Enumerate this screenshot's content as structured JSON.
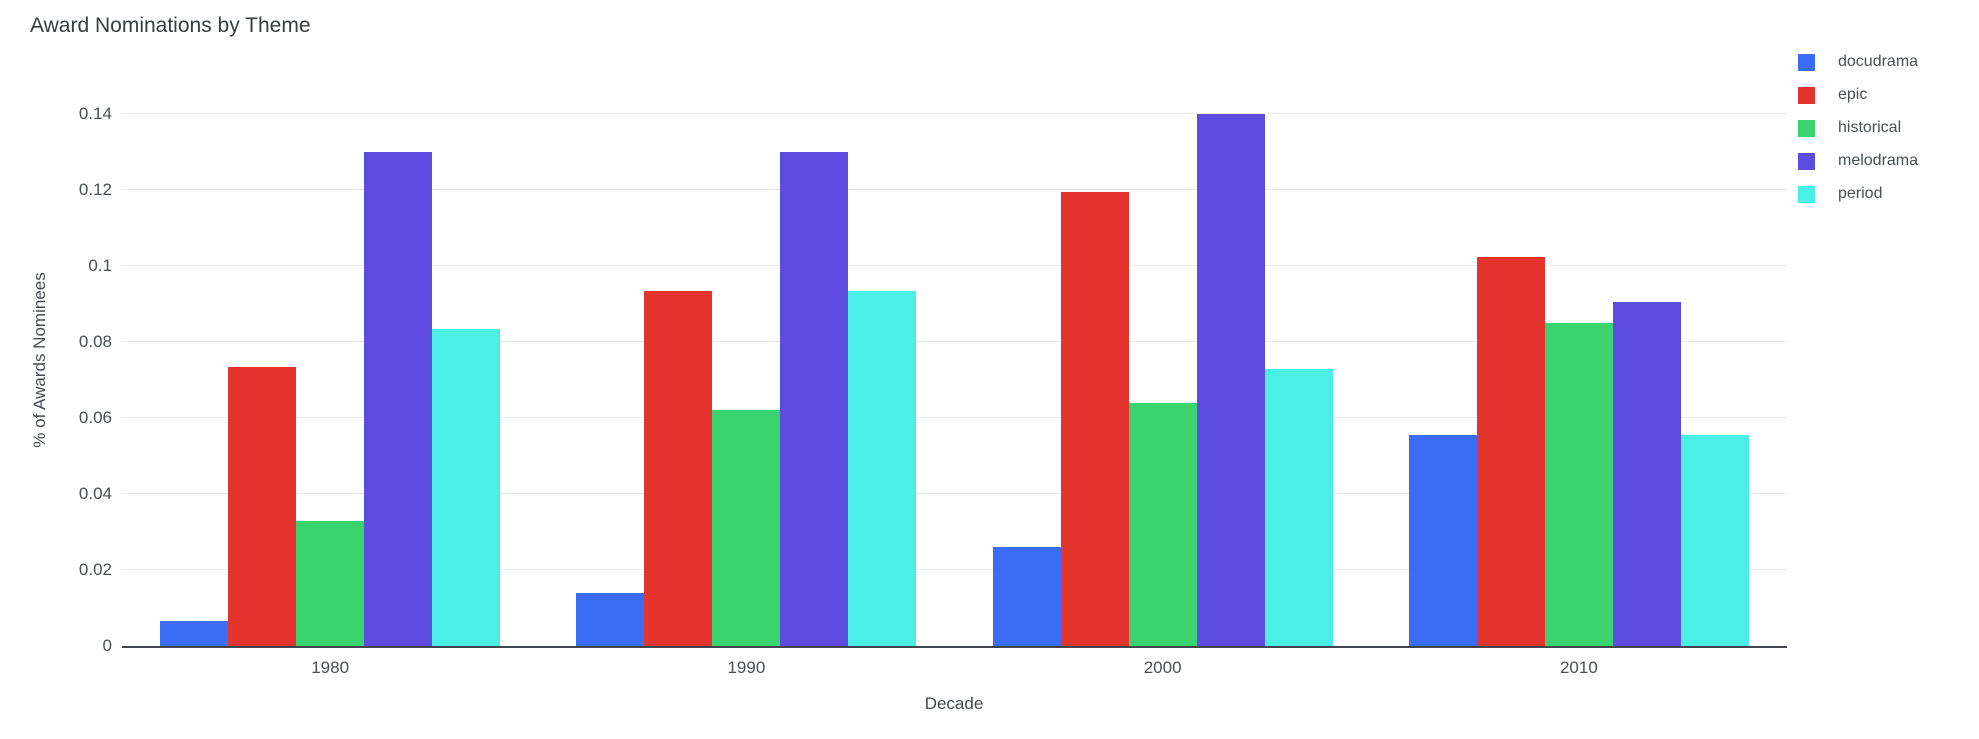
{
  "title": "Award Nominations by Theme",
  "chart_data": {
    "type": "bar",
    "categories": [
      "1980",
      "1990",
      "2000",
      "2010"
    ],
    "series": [
      {
        "name": "docudrama",
        "color": "#3B6CF5",
        "values": [
          0.0065,
          0.014,
          0.026,
          0.0555
        ]
      },
      {
        "name": "epic",
        "color": "#E5332E",
        "values": [
          0.0735,
          0.0935,
          0.1195,
          0.1025
        ]
      },
      {
        "name": "historical",
        "color": "#3AD36D",
        "values": [
          0.033,
          0.062,
          0.064,
          0.085
        ]
      },
      {
        "name": "melodrama",
        "color": "#5E4BE1",
        "values": [
          0.13,
          0.13,
          0.14,
          0.0905
        ]
      },
      {
        "name": "period",
        "color": "#4AF0E5",
        "values": [
          0.0835,
          0.0935,
          0.073,
          0.0555
        ]
      }
    ],
    "xlabel": "Decade",
    "ylabel": "% of Awards Nominees",
    "yticks": [
      0,
      0.02,
      0.04,
      0.06,
      0.08,
      0.1,
      0.12,
      0.14
    ],
    "ytick_labels": [
      "0",
      "0.02",
      "0.04",
      "0.06",
      "0.08",
      "0.1",
      "0.12",
      "0.14"
    ],
    "ylim": [
      0,
      0.1503
    ],
    "grid": true,
    "legend_position": "right"
  },
  "colors": {
    "background": "#ffffff",
    "grid": "#e9eaec",
    "axis_line": "#42454d",
    "title_text": "#383d42",
    "tick_text": "#4a4f55"
  }
}
